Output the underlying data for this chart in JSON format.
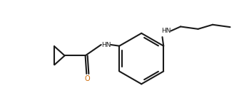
{
  "background": "#ffffff",
  "line_color": "#1a1a1a",
  "bond_width": 1.5,
  "o_color": "#cc6600",
  "figsize": [
    3.42,
    1.55
  ],
  "dpi": 100,
  "xlim": [
    0,
    10
  ],
  "ylim": [
    0,
    4.5
  ]
}
